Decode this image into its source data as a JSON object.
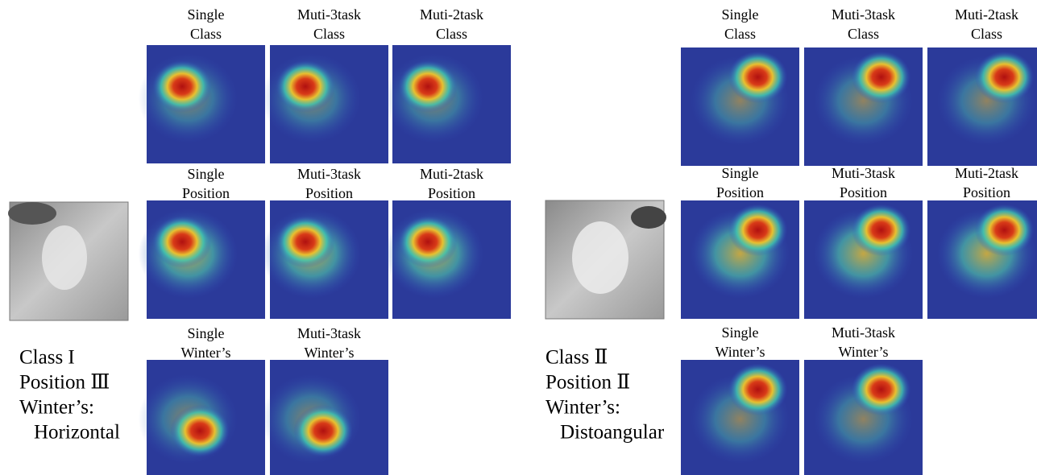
{
  "panels": [
    {
      "labels": [
        "Class I",
        "Position Ⅲ",
        "Winter’s:",
        "Horizontal"
      ],
      "rows": [
        [
          [
            "Single",
            "Class"
          ],
          [
            "Muti-3task",
            "Class"
          ],
          [
            "Muti-2task",
            "Class"
          ]
        ],
        [
          [
            "Single",
            "Position"
          ],
          [
            "Muti-3task",
            "Position"
          ],
          [
            "Muti-2task",
            "Position"
          ]
        ],
        [
          [
            "Single",
            "Winter’s"
          ],
          [
            "Muti-3task",
            "Winter’s"
          ]
        ]
      ]
    },
    {
      "labels": [
        "Class Ⅱ",
        "Position Ⅱ",
        "Winter’s:",
        "Distoangular"
      ],
      "rows": [
        [
          [
            "Single",
            "Class"
          ],
          [
            "Muti-3task",
            "Class"
          ],
          [
            "Muti-2task",
            "Class"
          ]
        ],
        [
          [
            "Single",
            "Position"
          ],
          [
            "Muti-3task",
            "Position"
          ],
          [
            "Muti-2task",
            "Position"
          ]
        ],
        [
          [
            "Single",
            "Winter’s"
          ],
          [
            "Muti-3task",
            "Winter’s"
          ]
        ]
      ]
    }
  ]
}
